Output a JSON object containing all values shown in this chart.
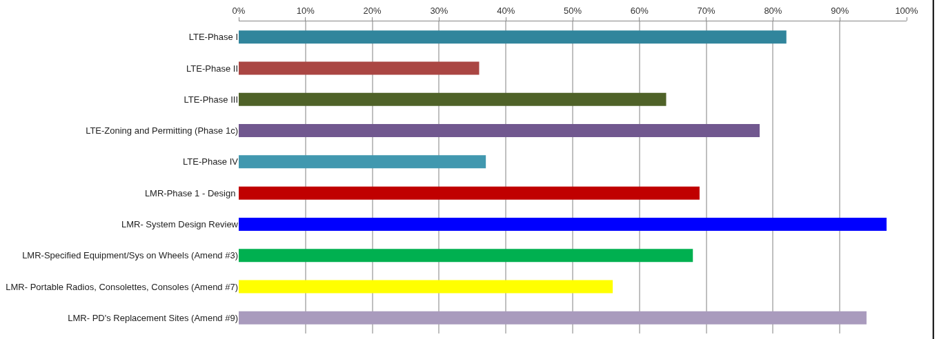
{
  "chart_data": {
    "type": "bar",
    "orientation": "horizontal",
    "categories": [
      "LTE-Phase I",
      "LTE-Phase II",
      "LTE-Phase III",
      "LTE-Zoning and Permitting (Phase 1c)",
      "LTE-Phase IV",
      "LMR-Phase 1 - Design ",
      "LMR- System Design Review",
      "LMR-Specified Equipment/Sys on Wheels (Amend #3)",
      "LMR- Portable Radios, Consolettes, Consoles (Amend #7)",
      "LMR- PD's Replacement Sites (Amend #9)"
    ],
    "values": [
      82,
      36,
      64,
      78,
      37,
      69,
      97,
      68,
      56,
      94
    ],
    "colors": [
      "#31859c",
      "#aa4643",
      "#4f6228",
      "#71588f",
      "#4198af",
      "#c00000",
      "#0000ff",
      "#00b050",
      "#ffff00",
      "#a99bbd"
    ],
    "xlim": [
      0,
      100
    ],
    "xticks": [
      {
        "value": 0,
        "label": "0%"
      },
      {
        "value": 10,
        "label": "10%"
      },
      {
        "value": 20,
        "label": "20%"
      },
      {
        "value": 30,
        "label": "30%"
      },
      {
        "value": 40,
        "label": "40%"
      },
      {
        "value": 50,
        "label": "50%"
      },
      {
        "value": 60,
        "label": "60%"
      },
      {
        "value": 70,
        "label": "70%"
      },
      {
        "value": 80,
        "label": "80%"
      },
      {
        "value": 90,
        "label": "90%"
      },
      {
        "value": 100,
        "label": "100%"
      }
    ],
    "grid": "x",
    "legend": false
  }
}
